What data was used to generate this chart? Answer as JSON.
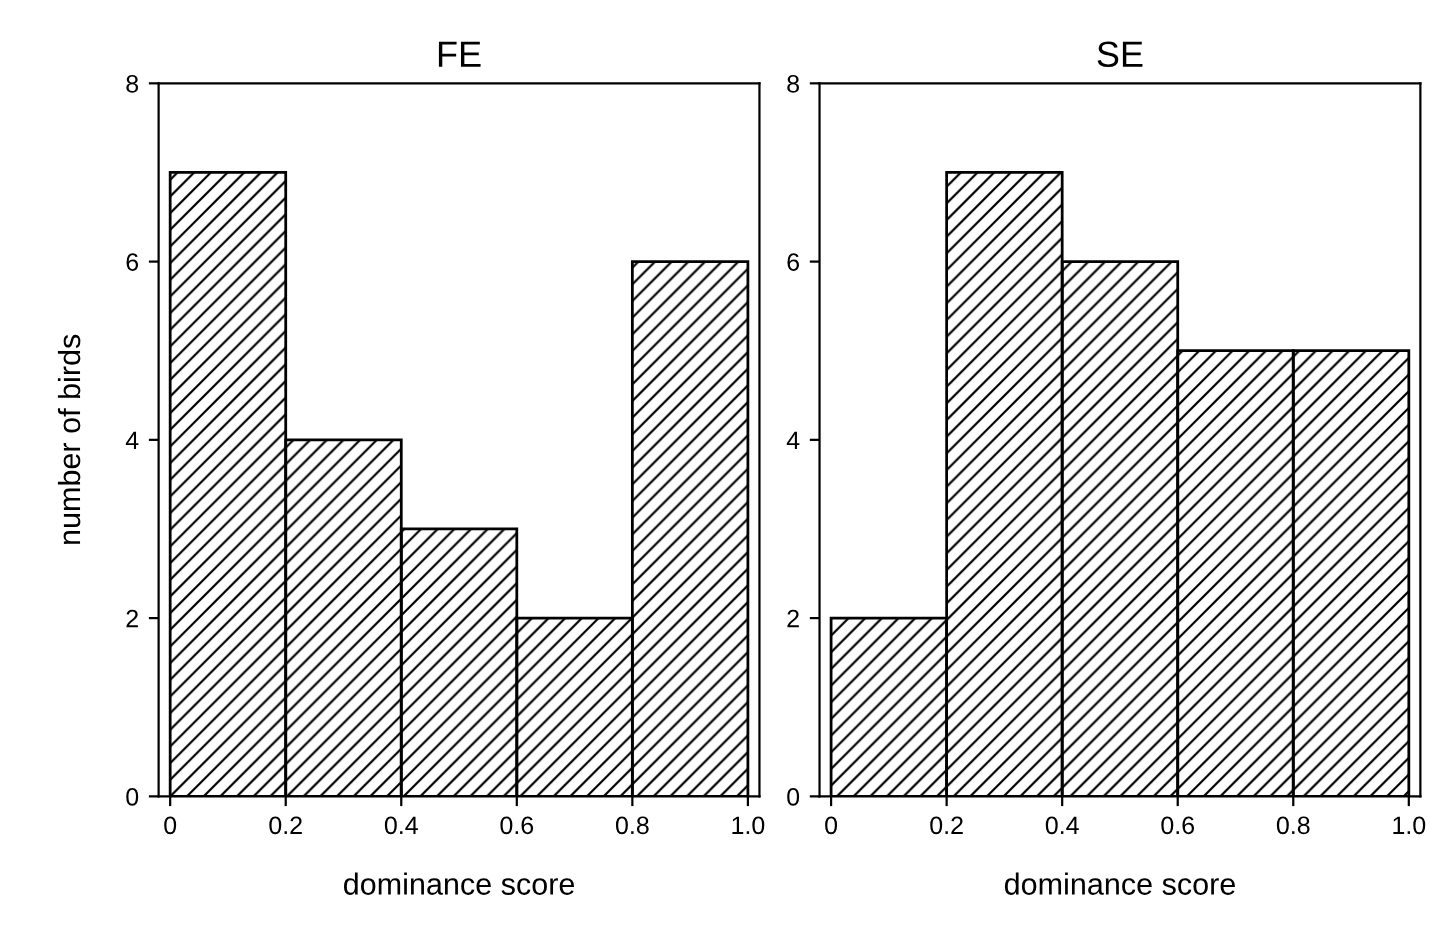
{
  "chart_data": [
    {
      "type": "histogram",
      "title": "FE",
      "xlabel": "dominance score",
      "ylabel": "number of birds",
      "bins": [
        0,
        0.2,
        0.4,
        0.6,
        0.8,
        1.0
      ],
      "values": [
        7,
        4,
        3,
        2,
        6
      ],
      "color": "#000000",
      "xlim": [
        -0.02,
        1.02
      ],
      "ylim": [
        0,
        8
      ],
      "xticks": [
        0,
        0.2,
        0.4,
        0.6,
        0.8,
        {
          "value": 1.0,
          "label": "1.0"
        }
      ],
      "yticks": [
        0,
        2,
        4,
        6,
        8
      ],
      "grid": false
    },
    {
      "type": "histogram",
      "title": "SE",
      "xlabel": "dominance score",
      "bins": [
        0,
        0.2,
        0.4,
        0.6,
        0.8,
        1.0
      ],
      "values": [
        2,
        7,
        6,
        5,
        5
      ],
      "color": "#000000",
      "xlim": [
        -0.02,
        1.02
      ],
      "ylim": [
        0,
        8
      ],
      "xticks": [
        0,
        0.2,
        0.4,
        0.6,
        0.8,
        {
          "value": 1.0,
          "label": "1.0"
        }
      ],
      "yticks": [
        0,
        2,
        4,
        6,
        8
      ],
      "grid": false
    }
  ]
}
